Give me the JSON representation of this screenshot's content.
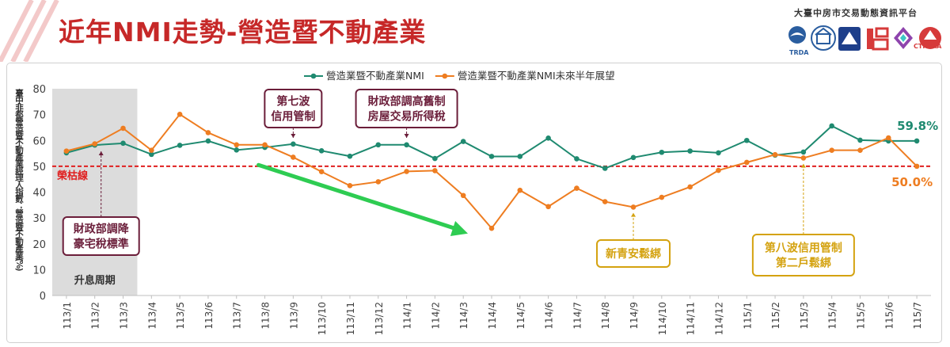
{
  "header": {
    "title": "近年NMI走勢-營造暨不動產業",
    "org": "大臺中房市交易動態資訊平台",
    "logo_caption_left": "TRDA",
    "logo_caption_right": "CTREAA"
  },
  "colors": {
    "nmi": "#1f8a70",
    "outlook": "#ee7d21",
    "threshold": "#e02020",
    "arrow": "#2ecc52",
    "annot_dark": "#6b1e3a",
    "annot_gold": "#d4a20f",
    "shade": "#dcdcdc"
  },
  "chart_data": {
    "type": "line",
    "ylabel": "臺中非都營造暨不動產業經理人指數：營造暨不動產業(%)",
    "ylim": [
      0,
      80
    ],
    "yticks": [
      0,
      10,
      20,
      30,
      40,
      50,
      60,
      70,
      80
    ],
    "grid": false,
    "legend_position": "top",
    "categories": [
      "113/1",
      "113/2",
      "113/3",
      "113/4",
      "113/5",
      "113/6",
      "113/7",
      "113/8",
      "113/9",
      "113/10",
      "113/11",
      "113/12",
      "114/1",
      "114/2",
      "114/3",
      "114/4",
      "114/5",
      "114/6",
      "114/7",
      "114/8",
      "114/9",
      "114/10",
      "114/11",
      "114/12",
      "115/1",
      "115/2",
      "115/3",
      "115/4",
      "115/5",
      "115/6",
      "115/7"
    ],
    "series": [
      {
        "name": "營造業暨不動產業NMI",
        "values": [
          55.2,
          58.2,
          58.9,
          54.6,
          58.1,
          59.8,
          56.3,
          57.3,
          58.6,
          56.0,
          53.9,
          58.3,
          58.3,
          53.0,
          59.6,
          53.8,
          53.8,
          60.9,
          52.9,
          49.2,
          53.4,
          55.4,
          55.9,
          55.2,
          60.0,
          54.3,
          55.5,
          65.6,
          60.1,
          59.8,
          59.8
        ]
      },
      {
        "name": "營造業暨不動產業NMI未來半年展望",
        "values": [
          55.9,
          58.7,
          64.7,
          56.2,
          70.1,
          63.0,
          58.3,
          58.3,
          53.5,
          47.9,
          42.5,
          44.0,
          48.0,
          48.3,
          38.7,
          26.0,
          40.7,
          34.4,
          41.5,
          36.3,
          34.2,
          38.0,
          42.0,
          48.4,
          51.5,
          54.5,
          53.2,
          56.2,
          56.2,
          61.0,
          50.0
        ]
      }
    ],
    "threshold": {
      "value": 50,
      "label": "榮枯線"
    },
    "shaded_region": {
      "from": "113/1",
      "to": "113/3",
      "label": "升息周期"
    },
    "end_labels": [
      "59.8%",
      "50.0%"
    ],
    "annotations": [
      {
        "text": [
          "財政部調降",
          "豪宅稅標準"
        ],
        "x": "113/2",
        "style": "dark"
      },
      {
        "text": [
          "第七波",
          "信用管制"
        ],
        "x": "113/9",
        "style": "dark"
      },
      {
        "text": [
          "財政部調高舊制",
          "房屋交易所得稅"
        ],
        "x": "114/1",
        "style": "dark"
      },
      {
        "text": [
          "新青安鬆綁"
        ],
        "x": "114/9",
        "style": "gold"
      },
      {
        "text": [
          "第八波信用管制",
          "第二戶鬆綁"
        ],
        "x": "115/3",
        "style": "gold"
      }
    ],
    "trend_arrow": {
      "from": "113/8",
      "to": "114/4",
      "direction": "down"
    }
  }
}
